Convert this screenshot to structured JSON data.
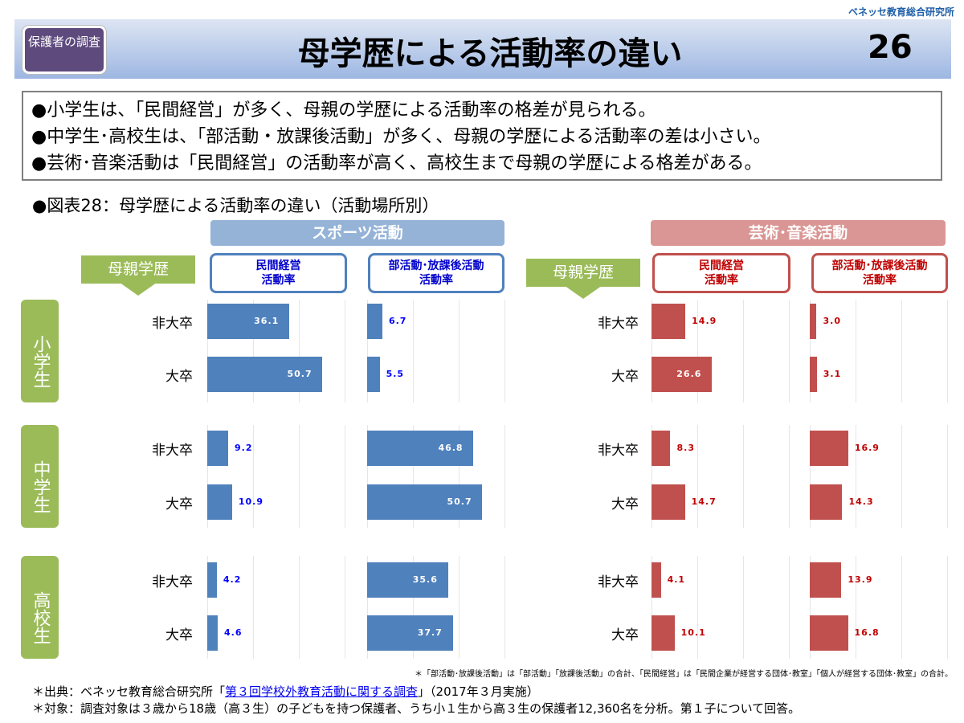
{
  "brand": "ベネッセ教育総合研究所",
  "badge": "保護者の調査",
  "title": "母学歴による活動率の違い",
  "page_number": "26",
  "bullets": [
    "●小学生は、「民間経営」が多く、母親の学歴による活動率の格差が見られる。",
    "●中学生･高校生は、「部活動・放課後活動」が多く、母親の学歴による活動率の差は小さい。",
    "●芸術･音楽活動は「民間経営」の活動率が高く、高校生まで母親の学歴による格差がある。"
  ],
  "figure_title": "●図表28：母学歴による活動率の違い（活動場所別）",
  "mother_edu_label": "母親学歴",
  "chart_data": {
    "type": "bar",
    "title": "母学歴による活動率の違い（活動場所別）",
    "stages": [
      "小学生",
      "中学生",
      "高校生"
    ],
    "categories": [
      "非大卒",
      "大卒"
    ],
    "groups": [
      {
        "name": "スポーツ活動",
        "color": "#4f81bd",
        "label_color": "#0000ff",
        "panels": [
          {
            "name": "民間経営活動率",
            "values": [
              [
                36.1,
                50.7
              ],
              [
                9.2,
                10.9
              ],
              [
                4.2,
                4.6
              ]
            ]
          },
          {
            "name": "部活動･放課後活動活動率",
            "values": [
              [
                6.7,
                5.5
              ],
              [
                46.8,
                50.7
              ],
              [
                35.6,
                37.7
              ]
            ]
          }
        ]
      },
      {
        "name": "芸術･音楽活動",
        "color": "#c0504d",
        "label_color": "#c00000",
        "panels": [
          {
            "name": "民間経営活動率",
            "values": [
              [
                14.9,
                26.6
              ],
              [
                8.3,
                14.7
              ],
              [
                4.1,
                10.1
              ]
            ]
          },
          {
            "name": "部活動･放課後活動活動率",
            "values": [
              [
                3.0,
                3.1
              ],
              [
                16.9,
                14.3
              ],
              [
                13.9,
                16.8
              ]
            ]
          }
        ]
      }
    ]
  },
  "panel_labels": {
    "min1": "民間経営",
    "min2": "活動率",
    "bu1": "部活動･放課後活動",
    "bu2": "活動率"
  },
  "note": "＊「部活動･放課後活動」は「部活動」「放課後活動」の合計、「民間経営」は「民間企業が経営する団体･教室」「個人が経営する団体･教室」の合計。",
  "source_prefix": "＊出典：ベネッセ教育総合研究所「",
  "source_link": "第３回学校外教育活動に関する調査",
  "source_suffix": "」（2017年３月実施）",
  "target": "＊対象：調査対象は３歳から18歳（高３生）の子どもを持つ保護者、うち小１生から高３生の保護者12,360名を分析。第１子について回答。"
}
